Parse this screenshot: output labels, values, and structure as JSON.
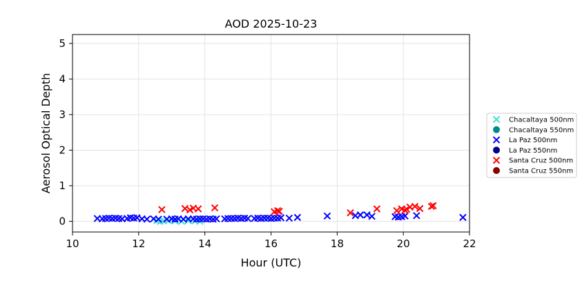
{
  "chart_data": {
    "type": "scatter",
    "title": "AOD 2025-10-23",
    "xlabel": "Hour (UTC)",
    "ylabel": "Aerosol Optical Depth",
    "xlim": [
      10,
      22
    ],
    "ylim": [
      -0.3,
      5.25
    ],
    "xticks": [
      10,
      12,
      14,
      16,
      18,
      20,
      22
    ],
    "yticks": [
      0,
      1,
      2,
      3,
      4,
      5
    ],
    "grid": true,
    "legend_position": "outside-right",
    "series": [
      {
        "name": "Chacaltaya 500nm",
        "marker": "x",
        "color": "#40e0d0",
        "x": [
          12.55,
          12.65,
          12.75,
          12.9,
          13.1,
          13.3,
          13.5,
          13.7,
          13.85
        ],
        "y": [
          0.02,
          0.0,
          0.01,
          0.02,
          0.01,
          0.0,
          0.02,
          0.01,
          0.0
        ]
      },
      {
        "name": "Chacaltaya 550nm",
        "marker": "o",
        "color": "#008b8b",
        "x": [],
        "y": []
      },
      {
        "name": "La Paz 500nm",
        "marker": "x",
        "color": "#0000ff",
        "x": [
          10.75,
          10.9,
          11.0,
          11.1,
          11.2,
          11.3,
          11.4,
          11.5,
          11.65,
          11.75,
          11.85,
          11.95,
          12.1,
          12.25,
          12.45,
          12.6,
          12.85,
          13.0,
          13.1,
          13.2,
          13.35,
          13.5,
          13.65,
          13.75,
          13.85,
          13.95,
          14.05,
          14.15,
          14.25,
          14.35,
          14.6,
          14.7,
          14.8,
          14.9,
          15.0,
          15.1,
          15.2,
          15.3,
          15.5,
          15.6,
          15.7,
          15.8,
          15.9,
          16.0,
          16.1,
          16.2,
          16.3,
          16.55,
          16.8,
          17.7,
          18.55,
          18.7,
          18.9,
          19.05,
          19.75,
          19.85,
          19.95,
          20.05,
          20.4,
          21.8
        ],
        "y": [
          0.08,
          0.07,
          0.08,
          0.09,
          0.08,
          0.09,
          0.08,
          0.07,
          0.08,
          0.1,
          0.09,
          0.1,
          0.07,
          0.06,
          0.07,
          0.06,
          0.06,
          0.07,
          0.06,
          0.07,
          0.06,
          0.07,
          0.07,
          0.06,
          0.07,
          0.07,
          0.06,
          0.07,
          0.06,
          0.07,
          0.07,
          0.08,
          0.08,
          0.08,
          0.09,
          0.08,
          0.09,
          0.08,
          0.08,
          0.09,
          0.08,
          0.09,
          0.09,
          0.08,
          0.09,
          0.09,
          0.1,
          0.09,
          0.11,
          0.15,
          0.16,
          0.18,
          0.18,
          0.14,
          0.13,
          0.12,
          0.13,
          0.15,
          0.16,
          0.11
        ]
      },
      {
        "name": "La Paz 550nm",
        "marker": "o",
        "color": "#00008b",
        "x": [],
        "y": []
      },
      {
        "name": "Santa Cruz 500nm",
        "marker": "x",
        "color": "#ff0000",
        "x": [
          12.7,
          13.4,
          13.55,
          13.65,
          13.8,
          14.3,
          16.1,
          16.2,
          16.25,
          18.4,
          19.2,
          19.8,
          19.95,
          20.05,
          20.1,
          20.2,
          20.35,
          20.5,
          20.85,
          20.9
        ],
        "y": [
          0.33,
          0.36,
          0.32,
          0.37,
          0.35,
          0.38,
          0.27,
          0.3,
          0.28,
          0.24,
          0.35,
          0.3,
          0.35,
          0.31,
          0.34,
          0.4,
          0.42,
          0.36,
          0.42,
          0.44
        ]
      },
      {
        "name": "Santa Cruz 550nm",
        "marker": "o",
        "color": "#8b0000",
        "x": [],
        "y": []
      }
    ]
  }
}
